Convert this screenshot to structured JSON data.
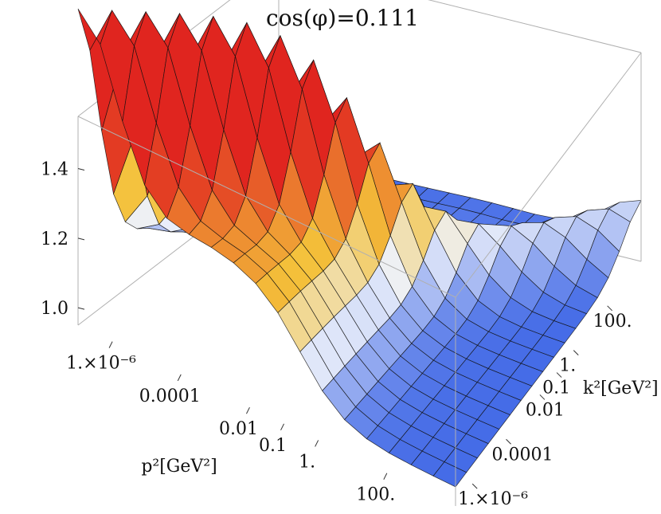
{
  "chart_data": {
    "type": "surface3d",
    "title": "cos(φ)=0.111",
    "xlabel": "p²[GeV²]",
    "ylabel": "k²[GeV²]",
    "x_scale": "log",
    "y_scale": "log",
    "x_range": [
      1e-07,
      10000
    ],
    "y_range": [
      1e-07,
      10000
    ],
    "z_range": [
      0.95,
      1.55
    ],
    "x_ticks": [
      {
        "value": 1e-06,
        "label": "1.×10⁻⁶"
      },
      {
        "value": 0.0001,
        "label": "0.0001"
      },
      {
        "value": 0.01,
        "label": "0.01"
      },
      {
        "value": 0.1,
        "label": "0.1"
      },
      {
        "value": 1,
        "label": "1."
      },
      {
        "value": 100,
        "label": "100."
      }
    ],
    "y_ticks": [
      {
        "value": 1e-06,
        "label": "1.×10⁻⁶"
      },
      {
        "value": 0.0001,
        "label": "0.0001"
      },
      {
        "value": 0.01,
        "label": "0.01"
      },
      {
        "value": 0.1,
        "label": "0.1"
      },
      {
        "value": 1,
        "label": "1."
      },
      {
        "value": 100,
        "label": "100."
      }
    ],
    "z_ticks": [
      {
        "value": 1.0,
        "label": "1.0"
      },
      {
        "value": 1.2,
        "label": "1.2"
      },
      {
        "value": 1.4,
        "label": "1.4"
      }
    ],
    "surface_samples": [
      {
        "p2": 1e-07,
        "k2": 1e-07,
        "z": 1.08
      },
      {
        "p2": 1e-07,
        "k2": 0.0001,
        "z": 1.52
      },
      {
        "p2": 0.01,
        "k2": 0.01,
        "z": 1.03
      },
      {
        "p2": 1,
        "k2": 1e-06,
        "z": 1.28
      },
      {
        "p2": 10000,
        "k2": 1e-07,
        "z": 1.0
      },
      {
        "p2": 1e-07,
        "k2": 10000,
        "z": 1.0
      },
      {
        "p2": 10000,
        "k2": 10000,
        "z": 1.0
      }
    ],
    "colors": {
      "low": "#3f67e6",
      "mid": "#eef2fb",
      "mid_high": "#f4c13a",
      "high": "#e0251f",
      "mesh": "#111111",
      "box": "#b0b0b0"
    }
  }
}
